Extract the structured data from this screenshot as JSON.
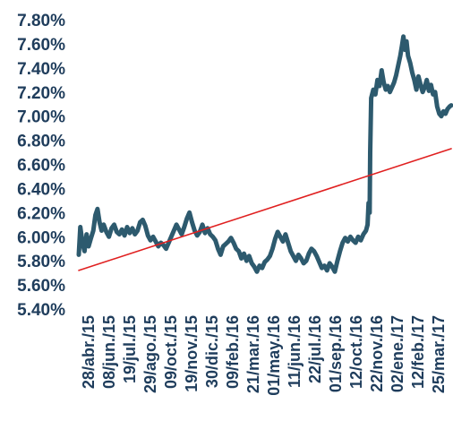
{
  "chart_data": {
    "type": "line",
    "title": "",
    "xlabel": "",
    "ylabel": "",
    "ylim": [
      5.4,
      7.8
    ],
    "yticks": [
      "5.40%",
      "5.60%",
      "5.80%",
      "6.00%",
      "6.20%",
      "6.40%",
      "6.60%",
      "6.80%",
      "7.00%",
      "7.20%",
      "7.40%",
      "7.60%",
      "7.80%"
    ],
    "xticks": [
      "28/abr./15",
      "08/jun./15",
      "19/jul./15",
      "29/ago./15",
      "09/oct./15",
      "19/nov./15",
      "30/dic./15",
      "09/feb./16",
      "21/mar./16",
      "01/may./16",
      "11/jun./16",
      "22/jul./16",
      "01/sep./16",
      "12/oct./16",
      "22/nov./16",
      "02/ene./17",
      "12/feb./17",
      "25/mar./17"
    ],
    "xrange": [
      "2015-04-28",
      "2017-04-14"
    ],
    "grid": false,
    "legend": "none",
    "series": [
      {
        "color": "#2d5a6e",
        "points": [
          [
            "2015-04-28",
            5.85
          ],
          [
            "2015-05-01",
            6.08
          ],
          [
            "2015-05-05",
            5.95
          ],
          [
            "2015-05-09",
            5.88
          ],
          [
            "2015-05-13",
            6.02
          ],
          [
            "2015-05-17",
            5.92
          ],
          [
            "2015-05-21",
            5.98
          ],
          [
            "2015-05-26",
            6.05
          ],
          [
            "2015-05-30",
            6.18
          ],
          [
            "2015-06-03",
            6.23
          ],
          [
            "2015-06-07",
            6.12
          ],
          [
            "2015-06-11",
            6.05
          ],
          [
            "2015-06-15",
            6.1
          ],
          [
            "2015-06-20",
            6.04
          ],
          [
            "2015-06-25",
            6.0
          ],
          [
            "2015-06-30",
            6.07
          ],
          [
            "2015-07-05",
            6.1
          ],
          [
            "2015-07-10",
            6.04
          ],
          [
            "2015-07-15",
            6.02
          ],
          [
            "2015-07-20",
            6.06
          ],
          [
            "2015-07-25",
            6.01
          ],
          [
            "2015-07-30",
            6.08
          ],
          [
            "2015-08-04",
            6.03
          ],
          [
            "2015-08-09",
            6.07
          ],
          [
            "2015-08-14",
            6.02
          ],
          [
            "2015-08-19",
            6.05
          ],
          [
            "2015-08-24",
            6.12
          ],
          [
            "2015-08-29",
            6.14
          ],
          [
            "2015-09-03",
            6.09
          ],
          [
            "2015-09-08",
            6.01
          ],
          [
            "2015-09-13",
            5.97
          ],
          [
            "2015-09-18",
            6.0
          ],
          [
            "2015-09-23",
            5.96
          ],
          [
            "2015-09-28",
            5.92
          ],
          [
            "2015-10-03",
            5.95
          ],
          [
            "2015-10-08",
            5.93
          ],
          [
            "2015-10-13",
            5.9
          ],
          [
            "2015-10-18",
            5.95
          ],
          [
            "2015-10-23",
            6.0
          ],
          [
            "2015-10-28",
            6.05
          ],
          [
            "2015-11-02",
            6.1
          ],
          [
            "2015-11-07",
            6.06
          ],
          [
            "2015-11-12",
            6.02
          ],
          [
            "2015-11-17",
            6.08
          ],
          [
            "2015-11-22",
            6.15
          ],
          [
            "2015-11-27",
            6.2
          ],
          [
            "2015-12-02",
            6.12
          ],
          [
            "2015-12-07",
            6.05
          ],
          [
            "2015-12-12",
            6.01
          ],
          [
            "2015-12-17",
            6.04
          ],
          [
            "2015-12-22",
            6.1
          ],
          [
            "2015-12-27",
            6.03
          ],
          [
            "2016-01-01",
            6.07
          ],
          [
            "2016-01-06",
            6.02
          ],
          [
            "2016-01-11",
            6.0
          ],
          [
            "2016-01-16",
            5.97
          ],
          [
            "2016-01-21",
            5.9
          ],
          [
            "2016-01-26",
            5.85
          ],
          [
            "2016-01-31",
            5.92
          ],
          [
            "2016-02-05",
            5.94
          ],
          [
            "2016-02-10",
            5.96
          ],
          [
            "2016-02-15",
            5.99
          ],
          [
            "2016-02-20",
            5.95
          ],
          [
            "2016-02-25",
            5.9
          ],
          [
            "2016-03-01",
            5.88
          ],
          [
            "2016-03-06",
            5.82
          ],
          [
            "2016-03-11",
            5.86
          ],
          [
            "2016-03-16",
            5.8
          ],
          [
            "2016-03-21",
            5.84
          ],
          [
            "2016-03-26",
            5.78
          ],
          [
            "2016-03-31",
            5.75
          ],
          [
            "2016-04-05",
            5.71
          ],
          [
            "2016-04-10",
            5.76
          ],
          [
            "2016-04-15",
            5.74
          ],
          [
            "2016-04-20",
            5.79
          ],
          [
            "2016-04-25",
            5.81
          ],
          [
            "2016-04-30",
            5.84
          ],
          [
            "2016-05-05",
            5.9
          ],
          [
            "2016-05-10",
            5.98
          ],
          [
            "2016-05-15",
            6.04
          ],
          [
            "2016-05-20",
            6.0
          ],
          [
            "2016-05-25",
            5.96
          ],
          [
            "2016-05-30",
            6.02
          ],
          [
            "2016-06-04",
            5.95
          ],
          [
            "2016-06-09",
            5.88
          ],
          [
            "2016-06-14",
            5.84
          ],
          [
            "2016-06-19",
            5.8
          ],
          [
            "2016-06-24",
            5.85
          ],
          [
            "2016-06-29",
            5.82
          ],
          [
            "2016-07-04",
            5.78
          ],
          [
            "2016-07-09",
            5.8
          ],
          [
            "2016-07-14",
            5.86
          ],
          [
            "2016-07-19",
            5.9
          ],
          [
            "2016-07-24",
            5.88
          ],
          [
            "2016-07-29",
            5.84
          ],
          [
            "2016-08-03",
            5.79
          ],
          [
            "2016-08-08",
            5.74
          ],
          [
            "2016-08-13",
            5.76
          ],
          [
            "2016-08-18",
            5.72
          ],
          [
            "2016-08-23",
            5.78
          ],
          [
            "2016-08-28",
            5.75
          ],
          [
            "2016-09-02",
            5.71
          ],
          [
            "2016-09-07",
            5.8
          ],
          [
            "2016-09-12",
            5.88
          ],
          [
            "2016-09-17",
            5.95
          ],
          [
            "2016-09-22",
            5.99
          ],
          [
            "2016-09-27",
            5.96
          ],
          [
            "2016-10-02",
            6.0
          ],
          [
            "2016-10-07",
            5.97
          ],
          [
            "2016-10-12",
            5.95
          ],
          [
            "2016-10-17",
            6.0
          ],
          [
            "2016-10-22",
            5.97
          ],
          [
            "2016-10-27",
            6.02
          ],
          [
            "2016-11-01",
            6.05
          ],
          [
            "2016-11-04",
            6.1
          ],
          [
            "2016-11-06",
            6.28
          ],
          [
            "2016-11-08",
            6.2
          ],
          [
            "2016-11-09",
            6.7
          ],
          [
            "2016-11-11",
            7.15
          ],
          [
            "2016-11-15",
            7.22
          ],
          [
            "2016-11-19",
            7.18
          ],
          [
            "2016-11-23",
            7.3
          ],
          [
            "2016-11-27",
            7.25
          ],
          [
            "2016-12-01",
            7.38
          ],
          [
            "2016-12-05",
            7.28
          ],
          [
            "2016-12-09",
            7.22
          ],
          [
            "2016-12-13",
            7.25
          ],
          [
            "2016-12-17",
            7.2
          ],
          [
            "2016-12-21",
            7.24
          ],
          [
            "2016-12-25",
            7.28
          ],
          [
            "2016-12-29",
            7.34
          ],
          [
            "2017-01-02",
            7.42
          ],
          [
            "2017-01-06",
            7.5
          ],
          [
            "2017-01-09",
            7.58
          ],
          [
            "2017-01-12",
            7.66
          ],
          [
            "2017-01-15",
            7.55
          ],
          [
            "2017-01-18",
            7.62
          ],
          [
            "2017-01-21",
            7.5
          ],
          [
            "2017-01-25",
            7.44
          ],
          [
            "2017-01-29",
            7.36
          ],
          [
            "2017-02-02",
            7.3
          ],
          [
            "2017-02-06",
            7.22
          ],
          [
            "2017-02-10",
            7.33
          ],
          [
            "2017-02-14",
            7.26
          ],
          [
            "2017-02-18",
            7.2
          ],
          [
            "2017-02-22",
            7.24
          ],
          [
            "2017-02-26",
            7.3
          ],
          [
            "2017-03-02",
            7.21
          ],
          [
            "2017-03-06",
            7.26
          ],
          [
            "2017-03-10",
            7.18
          ],
          [
            "2017-03-14",
            7.2
          ],
          [
            "2017-03-18",
            7.08
          ],
          [
            "2017-03-22",
            7.02
          ],
          [
            "2017-03-26",
            7.0
          ],
          [
            "2017-03-30",
            7.04
          ],
          [
            "2017-04-03",
            7.02
          ],
          [
            "2017-04-07",
            7.06
          ],
          [
            "2017-04-11",
            7.08
          ],
          [
            "2017-04-14",
            7.09
          ]
        ]
      },
      {
        "color": "#e02020",
        "points": [
          [
            "2015-04-28",
            5.72
          ],
          [
            "2017-04-14",
            6.73
          ]
        ]
      }
    ]
  }
}
